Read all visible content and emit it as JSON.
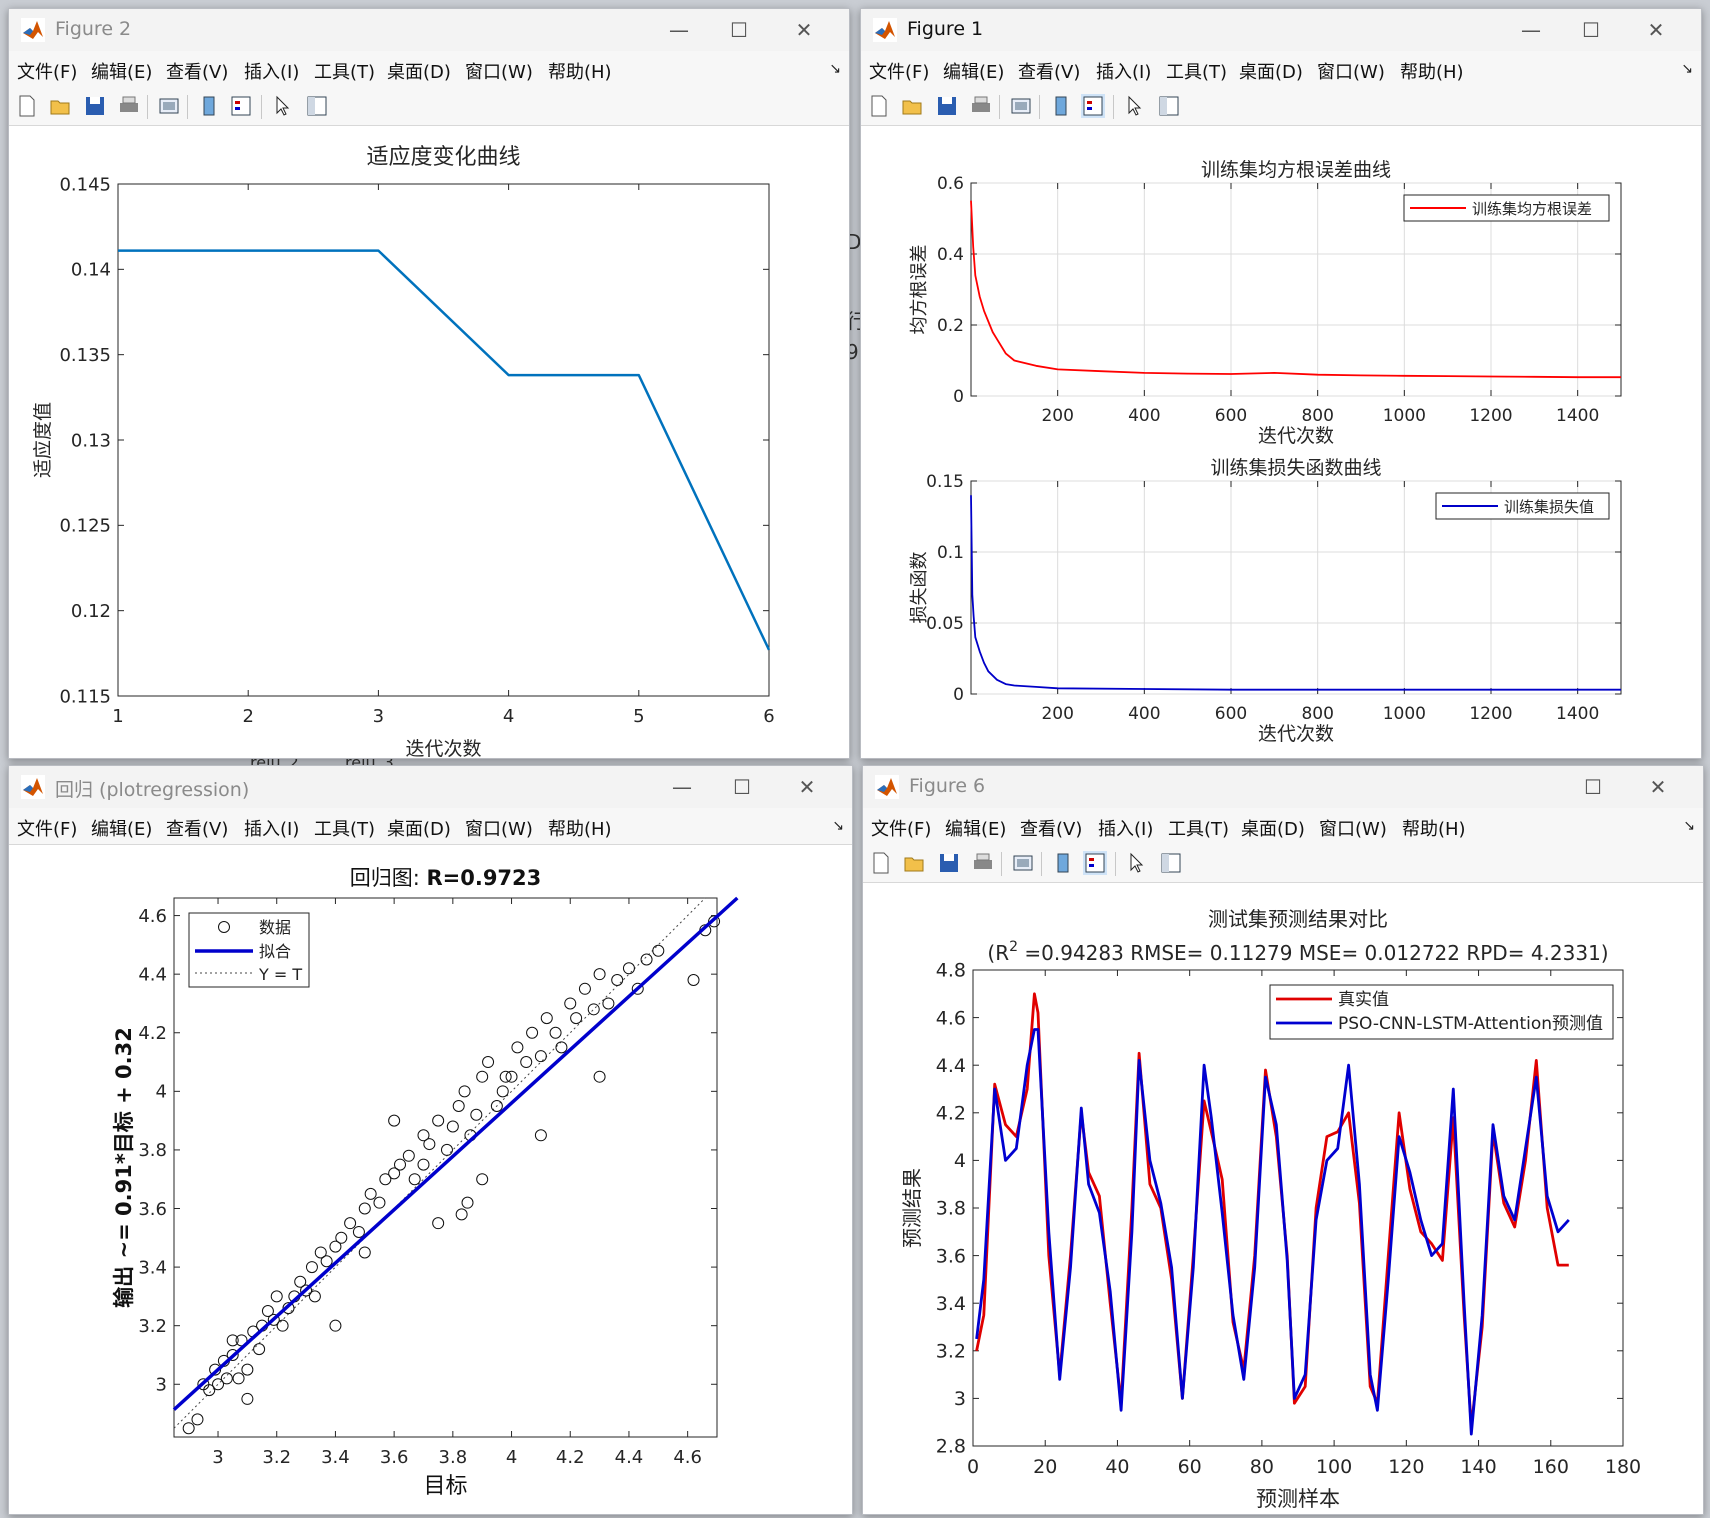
{
  "menu_items": [
    "文件(F)",
    "编辑(E)",
    "查看(V)",
    "插入(I)",
    "工具(T)",
    "桌面(D)",
    "窗口(W)",
    "帮助(H)"
  ],
  "background_fragments": [
    "D",
    "行",
    "9:",
    ":",
    "relu_2",
    "relu_3"
  ],
  "win2": {
    "title": "Figure 2",
    "chart_data": {
      "type": "line",
      "title": "适应度变化曲线",
      "xlabel": "迭代次数",
      "ylabel": "适应度值",
      "xlim": [
        1,
        6
      ],
      "ylim": [
        0.115,
        0.145
      ],
      "xticks": [
        "1",
        "2",
        "3",
        "4",
        "5",
        "6"
      ],
      "yticks": [
        "0.115",
        "0.12",
        "0.125",
        "0.13",
        "0.135",
        "0.14",
        "0.145"
      ],
      "x": [
        1,
        2,
        3,
        4,
        5,
        6
      ],
      "y": [
        0.1411,
        0.1411,
        0.1411,
        0.1338,
        0.1338,
        0.1177
      ],
      "color": "#0072bd",
      "grid": false
    }
  },
  "win1": {
    "title": "Figure 1",
    "charts": [
      {
        "type": "line",
        "title": "训练集均方根误差曲线",
        "xlabel": "迭代次数",
        "ylabel": "均方根误差",
        "xlim": [
          0,
          1500
        ],
        "ylim": [
          0,
          0.6
        ],
        "xticks": [
          "200",
          "400",
          "600",
          "800",
          "1000",
          "1200",
          "1400"
        ],
        "yticks": [
          "0",
          "0.2",
          "0.4",
          "0.6"
        ],
        "legend": "训练集均方根误差",
        "legend_position": "top-right",
        "color": "#ff0000",
        "grid": true,
        "x": [
          0,
          5,
          10,
          20,
          30,
          40,
          50,
          60,
          80,
          100,
          150,
          200,
          300,
          400,
          500,
          600,
          700,
          800,
          900,
          1000,
          1100,
          1200,
          1300,
          1400,
          1500
        ],
        "y": [
          0.55,
          0.42,
          0.34,
          0.28,
          0.24,
          0.21,
          0.18,
          0.16,
          0.12,
          0.1,
          0.085,
          0.075,
          0.07,
          0.065,
          0.063,
          0.062,
          0.065,
          0.06,
          0.058,
          0.057,
          0.056,
          0.055,
          0.054,
          0.053,
          0.053
        ]
      },
      {
        "type": "line",
        "title": "训练集损失函数曲线",
        "xlabel": "迭代次数",
        "ylabel": "损失函数",
        "xlim": [
          0,
          1500
        ],
        "ylim": [
          0,
          0.15
        ],
        "xticks": [
          "200",
          "400",
          "600",
          "800",
          "1000",
          "1200",
          "1400"
        ],
        "yticks": [
          "0",
          "0.05",
          "0.1",
          "0.15"
        ],
        "legend": "训练集损失值",
        "legend_position": "top-right",
        "color": "#0000c8",
        "grid": true,
        "x": [
          0,
          3,
          6,
          10,
          15,
          20,
          30,
          40,
          60,
          80,
          100,
          150,
          200,
          400,
          600,
          800,
          1000,
          1200,
          1400,
          1500
        ],
        "y": [
          0.14,
          0.07,
          0.055,
          0.04,
          0.035,
          0.03,
          0.022,
          0.016,
          0.01,
          0.007,
          0.006,
          0.005,
          0.004,
          0.0035,
          0.003,
          0.003,
          0.003,
          0.003,
          0.003,
          0.003
        ]
      }
    ]
  },
  "win_reg": {
    "title": "回归 (plotregression)",
    "chart_data": {
      "type": "scatter",
      "title_prefix": "回归图: ",
      "title_value": "R=0.9723",
      "xlabel": "目标",
      "ylabel": "输出 ~= 0.91*目标 + 0.32",
      "xlim": [
        2.85,
        4.7
      ],
      "ylim": [
        2.82,
        4.66
      ],
      "xticks": [
        "3",
        "3.2",
        "3.4",
        "3.6",
        "3.8",
        "4",
        "4.2",
        "4.4",
        "4.6"
      ],
      "yticks": [
        "3",
        "3.2",
        "3.4",
        "3.6",
        "3.8",
        "4",
        "4.2",
        "4.4",
        "4.6"
      ],
      "fit": {
        "slope": 0.91,
        "intercept": 0.32
      },
      "legend": [
        "数据",
        "拟合",
        "Y = T"
      ],
      "legend_position": "top-left",
      "points_x": [
        2.9,
        2.93,
        2.95,
        2.97,
        2.99,
        3.0,
        3.02,
        3.03,
        3.05,
        3.07,
        3.08,
        3.1,
        3.12,
        3.14,
        3.15,
        3.17,
        3.19,
        3.2,
        3.22,
        3.24,
        3.26,
        3.28,
        3.3,
        3.32,
        3.35,
        3.37,
        3.4,
        3.42,
        3.45,
        3.48,
        3.5,
        3.52,
        3.55,
        3.57,
        3.6,
        3.62,
        3.65,
        3.67,
        3.7,
        3.72,
        3.75,
        3.78,
        3.8,
        3.82,
        3.84,
        3.86,
        3.88,
        3.9,
        3.92,
        3.95,
        3.97,
        4.0,
        4.02,
        4.05,
        4.07,
        4.1,
        4.12,
        4.15,
        4.17,
        4.2,
        4.22,
        4.25,
        4.28,
        4.3,
        4.33,
        4.36,
        4.4,
        4.43,
        4.46,
        4.5,
        4.62,
        4.66,
        4.69,
        3.85,
        3.83,
        3.33,
        3.6,
        3.9,
        4.1,
        4.3,
        3.98,
        3.75,
        3.5,
        3.1,
        3.05,
        3.4,
        3.7
      ],
      "points_y": [
        2.85,
        2.88,
        3.0,
        2.98,
        3.05,
        3.0,
        3.08,
        3.02,
        3.1,
        3.02,
        3.15,
        3.05,
        3.18,
        3.12,
        3.2,
        3.25,
        3.22,
        3.3,
        3.2,
        3.26,
        3.3,
        3.35,
        3.32,
        3.4,
        3.45,
        3.42,
        3.47,
        3.5,
        3.55,
        3.52,
        3.6,
        3.65,
        3.62,
        3.7,
        3.72,
        3.75,
        3.78,
        3.7,
        3.85,
        3.82,
        3.9,
        3.8,
        3.88,
        3.95,
        4.0,
        3.85,
        3.92,
        4.05,
        4.1,
        3.95,
        4.0,
        4.05,
        4.15,
        4.1,
        4.2,
        4.12,
        4.25,
        4.2,
        4.15,
        4.3,
        4.25,
        4.35,
        4.28,
        4.4,
        4.3,
        4.38,
        4.42,
        4.35,
        4.45,
        4.48,
        4.38,
        4.55,
        4.58,
        3.62,
        3.58,
        3.3,
        3.9,
        3.7,
        3.85,
        4.05,
        4.05,
        3.55,
        3.45,
        2.95,
        3.15,
        3.2,
        3.75
      ]
    }
  },
  "win6": {
    "title": "Figure 6",
    "chart_data": {
      "type": "line",
      "title": "测试集预测结果对比",
      "subtitle_prefix": "(R",
      "subtitle_sup": "2",
      "subtitle_rest": " =0.94283 RMSE= 0.11279 MSE= 0.012722 RPD= 4.2331)",
      "xlabel": "预测样本",
      "ylabel": "预测结果",
      "xlim": [
        0,
        180
      ],
      "ylim": [
        2.8,
        4.8
      ],
      "xticks": [
        "0",
        "20",
        "40",
        "60",
        "80",
        "100",
        "120",
        "140",
        "160",
        "180"
      ],
      "yticks": [
        "2.8",
        "3",
        "3.2",
        "3.4",
        "3.6",
        "3.8",
        "4",
        "4.2",
        "4.4",
        "4.6",
        "4.8"
      ],
      "legend_position": "top-right",
      "x": [
        1,
        3,
        6,
        9,
        12,
        15,
        17,
        18,
        21,
        24,
        27,
        30,
        32,
        35,
        38,
        41,
        44,
        46,
        49,
        52,
        55,
        58,
        61,
        64,
        66,
        69,
        72,
        75,
        78,
        81,
        84,
        87,
        89,
        92,
        95,
        98,
        101,
        104,
        107,
        110,
        112,
        115,
        118,
        121,
        124,
        127,
        130,
        133,
        136,
        138,
        141,
        144,
        147,
        150,
        153,
        156,
        159,
        162,
        165
      ],
      "series": [
        {
          "name": "真实值",
          "color": "#e00000",
          "y": [
            3.2,
            3.35,
            4.32,
            4.15,
            4.1,
            4.3,
            4.7,
            4.62,
            3.6,
            3.1,
            3.6,
            4.2,
            3.95,
            3.85,
            3.4,
            2.98,
            3.8,
            4.45,
            3.9,
            3.8,
            3.5,
            3.0,
            3.6,
            4.25,
            4.12,
            3.92,
            3.32,
            3.12,
            3.6,
            4.38,
            4.1,
            3.6,
            2.98,
            3.05,
            3.8,
            4.1,
            4.12,
            4.2,
            3.82,
            3.05,
            2.98,
            3.6,
            4.2,
            3.88,
            3.7,
            3.65,
            3.58,
            4.18,
            3.35,
            2.88,
            3.3,
            4.12,
            3.82,
            3.72,
            4.0,
            4.42,
            3.8,
            3.56,
            3.56
          ]
        },
        {
          "name": "PSO-CNN-LSTM-Attention预测值",
          "color": "#0000d0",
          "y": [
            3.25,
            3.5,
            4.3,
            4.0,
            4.05,
            4.4,
            4.55,
            4.55,
            3.7,
            3.08,
            3.55,
            4.22,
            3.9,
            3.78,
            3.45,
            2.95,
            3.7,
            4.42,
            4.0,
            3.82,
            3.55,
            3.0,
            3.55,
            4.4,
            4.18,
            3.78,
            3.35,
            3.08,
            3.55,
            4.35,
            4.15,
            3.58,
            3.0,
            3.1,
            3.75,
            4.0,
            4.05,
            4.4,
            3.9,
            3.1,
            2.95,
            3.5,
            4.1,
            3.95,
            3.75,
            3.6,
            3.65,
            4.3,
            3.4,
            2.85,
            3.35,
            4.15,
            3.85,
            3.75,
            4.05,
            4.35,
            3.85,
            3.7,
            3.75
          ]
        }
      ]
    }
  }
}
